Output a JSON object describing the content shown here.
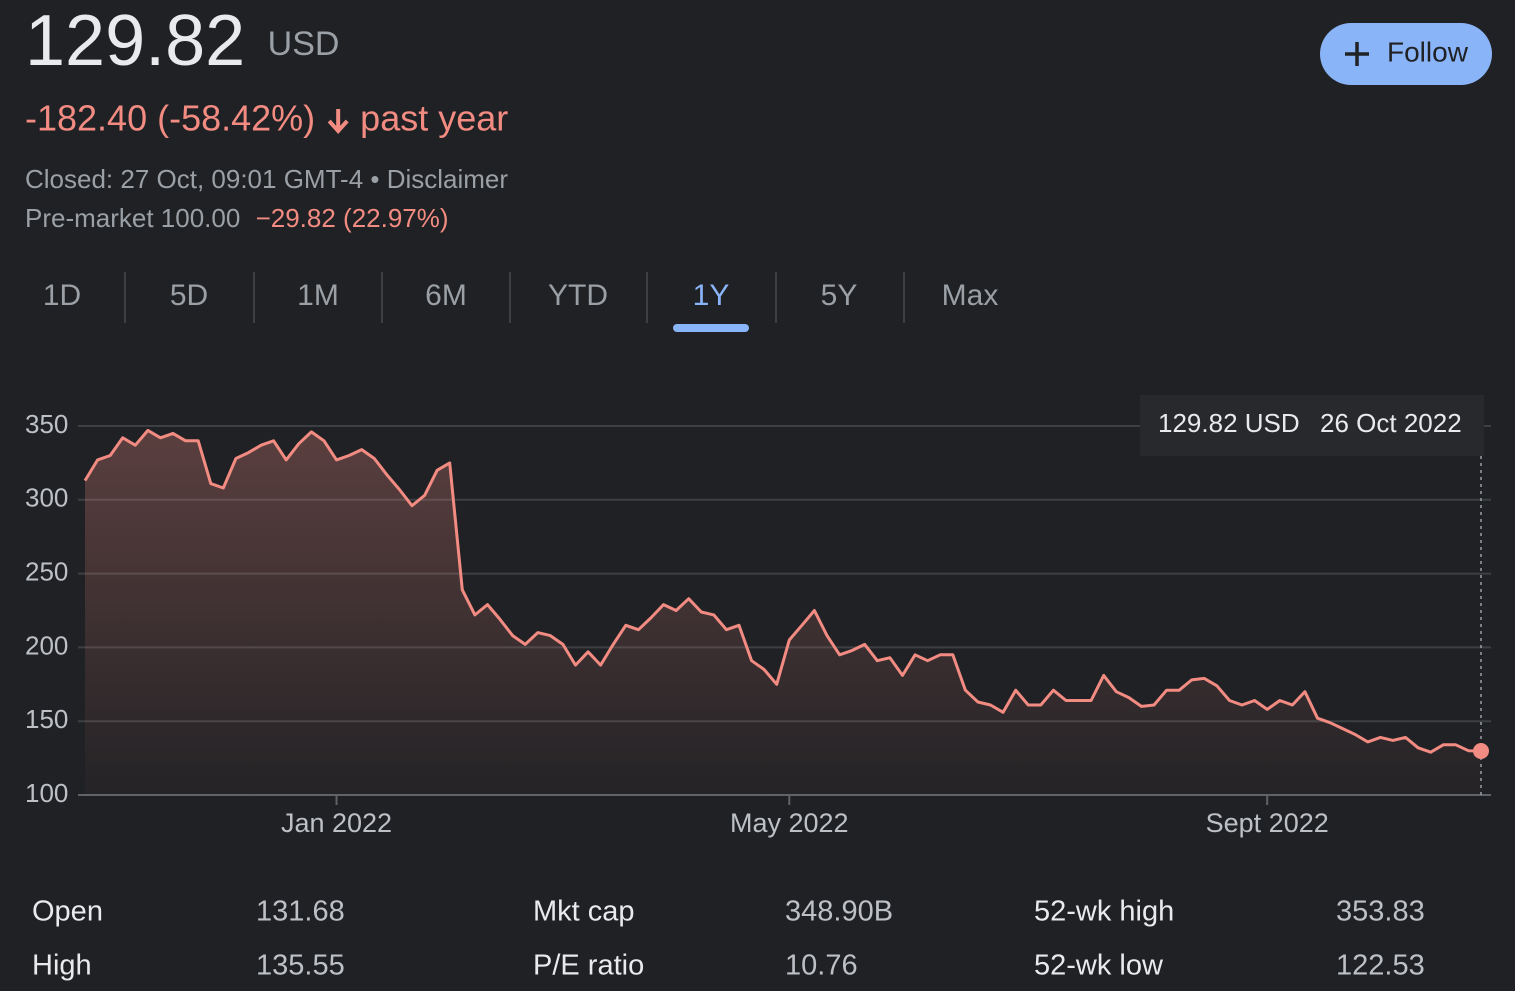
{
  "header": {
    "price": "129.82",
    "currency": "USD",
    "change": "-182.40 (-58.42%)",
    "period": "past year",
    "closed": "Closed: 27 Oct, 09:01 GMT-4 • Disclaimer",
    "premarket": "Pre-market 100.00",
    "premarket_change": "−29.82 (22.97%)",
    "follow": "Follow"
  },
  "range_tabs": {
    "items": [
      "1D",
      "5D",
      "1M",
      "6M",
      "YTD",
      "1Y",
      "5Y",
      "Max"
    ],
    "selected": "1Y"
  },
  "chart_data": {
    "type": "line",
    "color": "#f28b82",
    "grid": true,
    "values": [
      313,
      327,
      330,
      342,
      337,
      347,
      342,
      345,
      340,
      340,
      311,
      308,
      328,
      332,
      337,
      340,
      327,
      338,
      346,
      340,
      327,
      330,
      334,
      328,
      317,
      307,
      296,
      303,
      320,
      325,
      239,
      222,
      229,
      219,
      208,
      202,
      210,
      208,
      202,
      188,
      197,
      188,
      202,
      215,
      212,
      220,
      229,
      225,
      233,
      224,
      222,
      212,
      215,
      191,
      185,
      175,
      205,
      215,
      225,
      208,
      195,
      198,
      202,
      191,
      193,
      181,
      195,
      191,
      195,
      195,
      171,
      163,
      161,
      156,
      171,
      161,
      161,
      171,
      164,
      164,
      164,
      181,
      170,
      166,
      160,
      161,
      171,
      171,
      178,
      179,
      174,
      164,
      161,
      164,
      158,
      164,
      161,
      170,
      152,
      149,
      145,
      141,
      136,
      139,
      137,
      139,
      132,
      129,
      134,
      134,
      130,
      129.82
    ],
    "ylim": [
      100,
      350
    ],
    "yticks": [
      100,
      150,
      200,
      250,
      300,
      350
    ],
    "xticks": [
      {
        "value": 20,
        "label": "Jan 2022"
      },
      {
        "value": 56,
        "label": "May 2022"
      },
      {
        "value": 94,
        "label": "Sept 2022"
      }
    ],
    "tooltip": {
      "price": "129.82 USD",
      "date": "26 Oct 2022"
    }
  },
  "stats": {
    "rows": [
      [
        "Open",
        "131.68",
        "Mkt cap",
        "348.90B",
        "52-wk high",
        "353.83"
      ],
      [
        "High",
        "135.55",
        "P/E ratio",
        "10.76",
        "52-wk low",
        "122.53"
      ]
    ]
  }
}
